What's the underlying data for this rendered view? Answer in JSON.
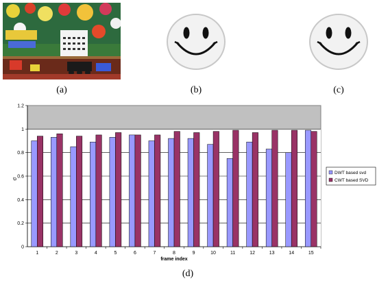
{
  "panels": {
    "a": {
      "caption": "(a)",
      "icon": "colorful-toys-photo"
    },
    "b": {
      "caption": "(b)",
      "icon": "smiley-face-icon"
    },
    "c": {
      "caption": "(c)",
      "icon": "smiley-face-icon"
    },
    "d": {
      "caption": "(d)"
    }
  },
  "colors": {
    "plot_bg": "#c0c0c0",
    "series1": "#9999ff",
    "series2": "#993366"
  },
  "chart_data": {
    "type": "bar",
    "categories": [
      "1",
      "2",
      "3",
      "4",
      "5",
      "6",
      "7",
      "8",
      "9",
      "10",
      "11",
      "12",
      "13",
      "14",
      "15"
    ],
    "xlabel": "frame index",
    "ylabel": "σ",
    "ylim": [
      0,
      1.2
    ],
    "yticks": [
      "0",
      "0.2",
      "0.4",
      "0.6",
      "0.8",
      "1",
      "1.2"
    ],
    "grid": true,
    "legend_position": "right",
    "series": [
      {
        "name": "DWT based svd",
        "values": [
          0.9,
          0.93,
          0.85,
          0.89,
          0.93,
          0.95,
          0.9,
          0.92,
          0.92,
          0.87,
          0.75,
          0.89,
          0.83,
          0.8,
          0.99
        ]
      },
      {
        "name": "CWT based SVD",
        "values": [
          0.94,
          0.96,
          0.94,
          0.95,
          0.97,
          0.95,
          0.95,
          0.98,
          0.97,
          0.98,
          0.99,
          0.97,
          0.99,
          0.99,
          0.98
        ]
      }
    ]
  }
}
